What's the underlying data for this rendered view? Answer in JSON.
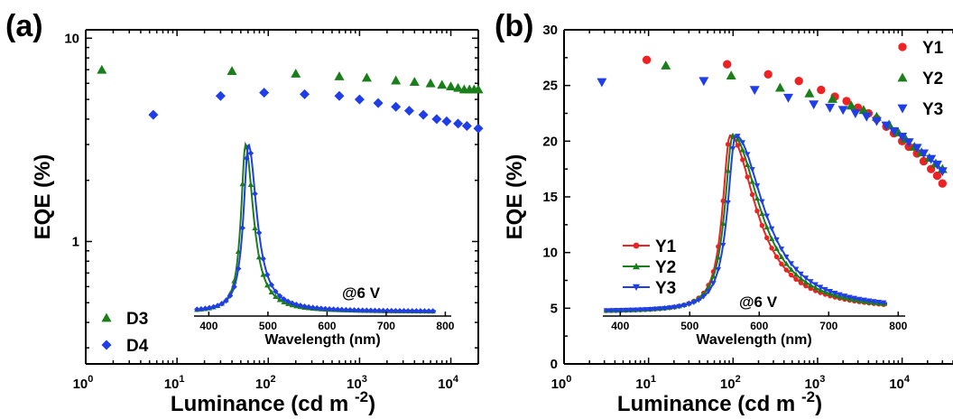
{
  "chart_data": [
    {
      "type": "scatter",
      "panel_label": "(a)",
      "xlabel": "Luminance (cd m",
      "xlabel_sup": "-2",
      "xlabel_end": ")",
      "ylabel": "EQE (%)",
      "xscale": "log",
      "yscale": "log",
      "xlim": [
        1,
        20000
      ],
      "ylim": [
        0.25,
        11
      ],
      "x_ticks": [
        1,
        10,
        100,
        1000,
        10000
      ],
      "x_tick_labels": [
        {
          "base": "10",
          "exp": "0"
        },
        {
          "base": "10",
          "exp": "1"
        },
        {
          "base": "10",
          "exp": "2"
        },
        {
          "base": "10",
          "exp": "3"
        },
        {
          "base": "10",
          "exp": "4"
        }
      ],
      "y_ticks": [
        1,
        10
      ],
      "y_tick_labels": [
        "1",
        "10"
      ],
      "legend_position": "bottom-left",
      "series": [
        {
          "name": "D3",
          "marker": "triangle-up",
          "color": "#1a7f1a",
          "x": [
            1.5,
            40,
            200,
            600,
            1200,
            2500,
            4000,
            6000,
            8000,
            10000,
            12000,
            14000,
            16000,
            18000,
            20000
          ],
          "y": [
            7.0,
            6.9,
            6.7,
            6.5,
            6.4,
            6.2,
            6.1,
            6.0,
            5.9,
            5.8,
            5.7,
            5.6,
            5.6,
            5.6,
            5.6
          ]
        },
        {
          "name": "D4",
          "marker": "diamond",
          "color": "#1f3de8",
          "x": [
            5.5,
            30,
            90,
            250,
            600,
            1000,
            1600,
            2500,
            3500,
            5000,
            7000,
            9000,
            12000,
            15000,
            20000
          ],
          "y": [
            4.2,
            5.2,
            5.4,
            5.3,
            5.2,
            5.0,
            4.8,
            4.6,
            4.4,
            4.2,
            4.0,
            3.9,
            3.8,
            3.7,
            3.6
          ]
        }
      ],
      "inset": {
        "type": "line",
        "xlabel": "Wavelength (nm)",
        "xlim": [
          375,
          810
        ],
        "x_ticks": [
          400,
          500,
          600,
          700,
          800
        ],
        "annotation": "@6 V",
        "series": [
          {
            "name": "D3",
            "color": "#1a7f1a",
            "peak": 462,
            "hwhm_left": 9,
            "hwhm_right": 16
          },
          {
            "name": "D4",
            "color": "#1f3de8",
            "peak": 467,
            "hwhm_left": 10,
            "hwhm_right": 17
          }
        ]
      }
    },
    {
      "type": "scatter",
      "panel_label": "(b)",
      "xlabel": "Luminance (cd m",
      "xlabel_sup": "-2",
      "xlabel_end": ")",
      "ylabel": "EQE (%)",
      "xscale": "log",
      "yscale": "linear",
      "xlim": [
        1,
        40000
      ],
      "ylim": [
        0,
        30
      ],
      "x_ticks": [
        1,
        10,
        100,
        1000,
        10000
      ],
      "x_tick_labels": [
        {
          "base": "10",
          "exp": "0"
        },
        {
          "base": "10",
          "exp": "1"
        },
        {
          "base": "10",
          "exp": "2"
        },
        {
          "base": "10",
          "exp": "3"
        },
        {
          "base": "10",
          "exp": "4"
        }
      ],
      "y_ticks": [
        0,
        5,
        10,
        15,
        20,
        25,
        30
      ],
      "y_tick_labels": [
        "0",
        "5",
        "10",
        "15",
        "20",
        "25",
        "30"
      ],
      "legend_position": "top-right",
      "legend_labels_visible": [
        "Y1",
        "Y2",
        "Y3"
      ],
      "series": [
        {
          "name": "Y1",
          "marker": "circle",
          "color": "#ee2222",
          "x": [
            9.5,
            85,
            260,
            600,
            1100,
            1600,
            2200,
            3000,
            4000,
            5000,
            6500,
            8000,
            10000,
            12000,
            15000,
            18000,
            22000,
            26000,
            30000
          ],
          "y": [
            27.3,
            26.9,
            26.0,
            25.4,
            24.6,
            24.0,
            23.6,
            23.0,
            22.5,
            22.0,
            21.3,
            20.7,
            20.0,
            19.5,
            18.9,
            18.2,
            17.5,
            16.9,
            16.2
          ]
        },
        {
          "name": "Y2",
          "marker": "triangle-up",
          "color": "#1a7f1a",
          "x": [
            16,
            95,
            360,
            800,
            1500,
            2500,
            3500,
            5000,
            7000,
            9000,
            11000,
            14000,
            17000,
            21000,
            25000,
            30000
          ],
          "y": [
            26.8,
            25.9,
            24.8,
            24.3,
            23.8,
            23.2,
            22.8,
            22.2,
            21.5,
            20.8,
            20.2,
            19.5,
            19.0,
            18.5,
            18.0,
            17.5
          ]
        },
        {
          "name": "Y3",
          "marker": "triangle-down",
          "color": "#1f3de8",
          "x": [
            2.8,
            45,
            180,
            450,
            900,
            1400,
            2000,
            2800,
            3800,
            5000,
            6500,
            8000,
            10000,
            12000,
            15000,
            18000,
            22000,
            26000,
            30000
          ],
          "y": [
            25.3,
            25.4,
            24.6,
            23.9,
            23.3,
            23.0,
            22.8,
            22.5,
            22.2,
            21.8,
            21.4,
            20.9,
            20.4,
            19.9,
            19.4,
            18.9,
            18.4,
            17.9,
            17.3
          ]
        }
      ],
      "inset": {
        "type": "line",
        "xlabel": "Wavelength (nm)",
        "xlim": [
          375,
          810
        ],
        "x_ticks": [
          400,
          500,
          600,
          700,
          800
        ],
        "annotation": "@6 V",
        "legend_labels": [
          "Y1",
          "Y2",
          "Y3"
        ],
        "series": [
          {
            "name": "Y1",
            "color": "#ee2222",
            "marker": "circle",
            "peak": 558,
            "hwhm_left": 13,
            "hwhm_right": 45
          },
          {
            "name": "Y2",
            "color": "#1a7f1a",
            "marker": "triangle-up",
            "peak": 562,
            "hwhm_left": 14,
            "hwhm_right": 47
          },
          {
            "name": "Y3",
            "color": "#1f3de8",
            "marker": "triangle-down",
            "peak": 566,
            "hwhm_left": 14,
            "hwhm_right": 49
          }
        ]
      }
    }
  ]
}
